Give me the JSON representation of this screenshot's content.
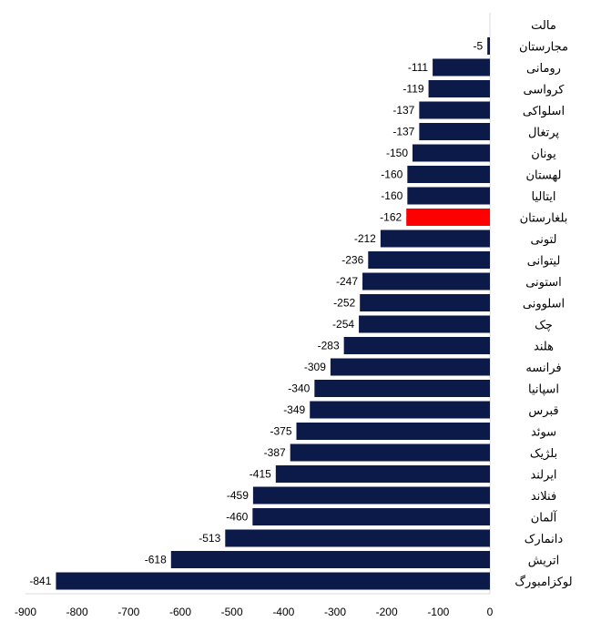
{
  "chart_data": {
    "type": "bar",
    "orientation": "horizontal",
    "title": "",
    "xlabel": "",
    "ylabel": "",
    "xlim": [
      -900,
      0
    ],
    "x_ticks": [
      "-900",
      "-800",
      "-700",
      "-600",
      "-500",
      "-400",
      "-300",
      "-200",
      "-100",
      "0"
    ],
    "grid": false,
    "legend": "none",
    "bar_color": "#0c1a4a",
    "highlight_color": "#ff0000",
    "highlight_category": "بلغارستان",
    "categories": [
      "مالت",
      "مجارستان",
      "رومانی",
      "کرواسی",
      "اسلواکی",
      "پرتغال",
      "یونان",
      "لهستان",
      "ایتالیا",
      "بلغارستان",
      "لتونی",
      "لیتوانی",
      "استونی",
      "اسلوونی",
      "چک",
      "هلند",
      "فرانسه",
      "اسپانیا",
      "قبرس",
      "سوئد",
      "بلژیک",
      "ایرلند",
      "فنلاند",
      "آلمان",
      "دانمارک",
      "اتریش",
      "لوکزامبورگ"
    ],
    "values": [
      null,
      -5,
      -111,
      -119,
      -137,
      -137,
      -150,
      -160,
      -160,
      -162,
      -212,
      -236,
      -247,
      -252,
      -254,
      -283,
      -309,
      -340,
      -349,
      -375,
      -387,
      -415,
      -459,
      -460,
      -513,
      -618,
      -841
    ],
    "value_labels": [
      "",
      "-5",
      "-111",
      "-119",
      "-137",
      "-137",
      "-150",
      "-160",
      "-160",
      "-162",
      "-212",
      "-236",
      "-247",
      "-252",
      "-254",
      "-283",
      "-309",
      "-340",
      "-349",
      "-375",
      "-387",
      "-415",
      "-459",
      "-460",
      "-513",
      "-618",
      "-841"
    ]
  }
}
